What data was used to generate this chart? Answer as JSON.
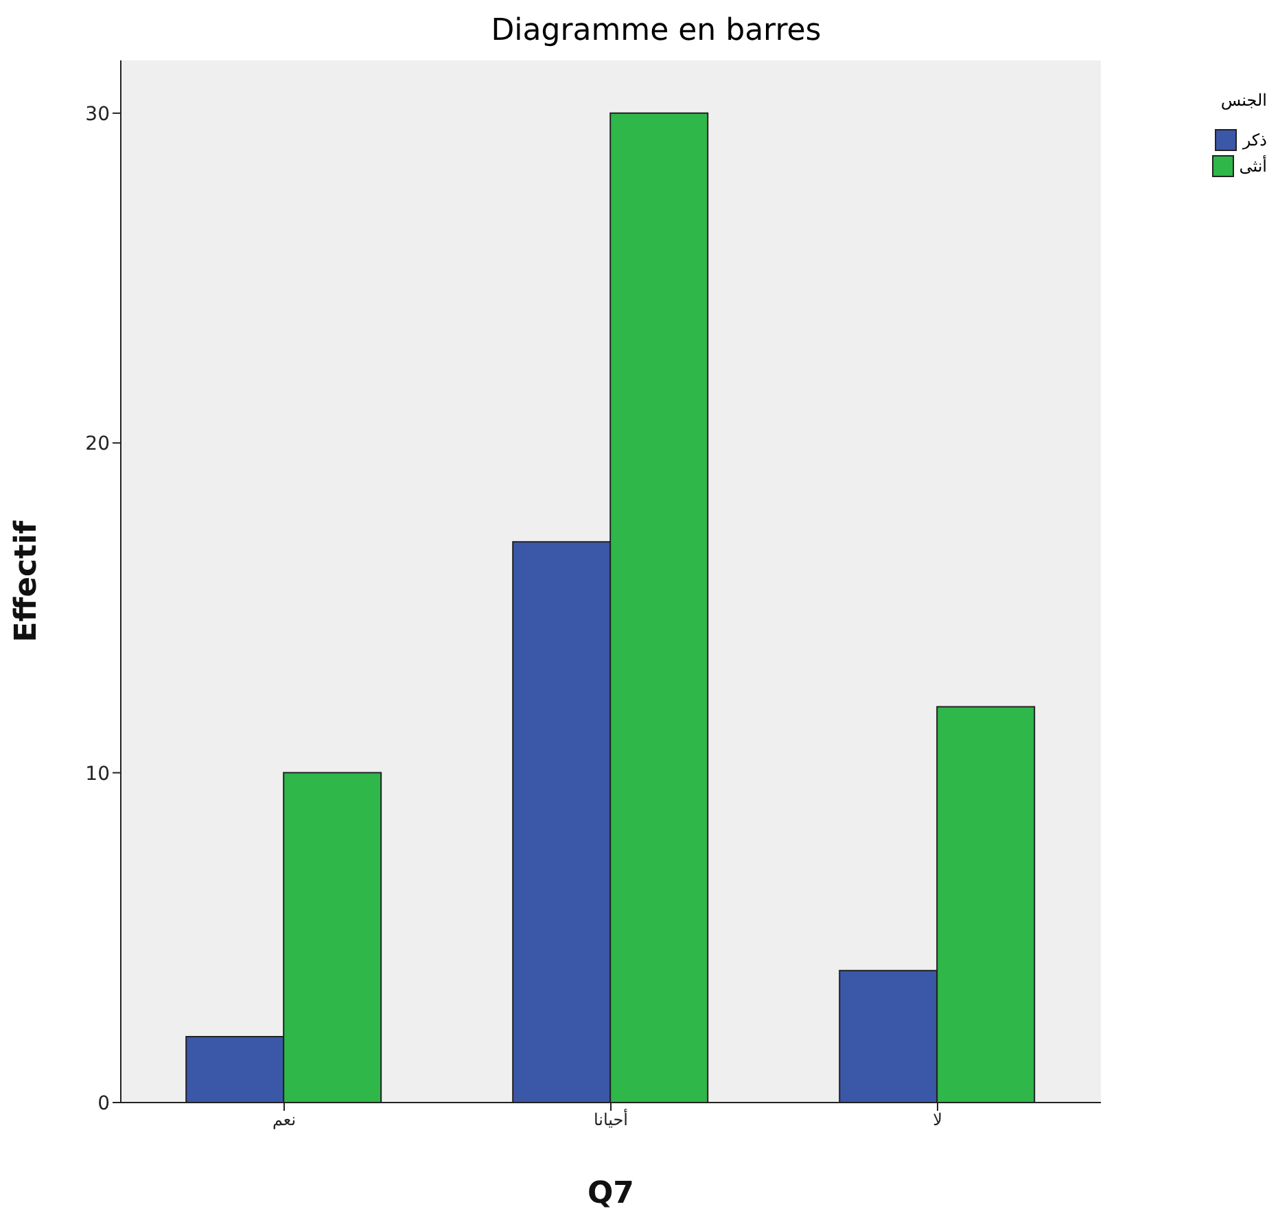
{
  "chart_data": {
    "type": "bar",
    "title": "Diagramme en barres",
    "xlabel": "Q7",
    "ylabel": "Effectif",
    "legend_title": "الجنس",
    "categories": [
      "نعم",
      "أحيانا",
      "لا"
    ],
    "series": [
      {
        "name": "ذكر",
        "color": "#3b57a8",
        "values": [
          2,
          17,
          4
        ]
      },
      {
        "name": "أنثى",
        "color": "#2fb74a",
        "values": [
          10,
          30,
          12
        ]
      }
    ],
    "ylim": [
      0,
      31.6
    ],
    "yticks": [
      0,
      10,
      20,
      30
    ],
    "grid": false,
    "legend": "top right"
  }
}
